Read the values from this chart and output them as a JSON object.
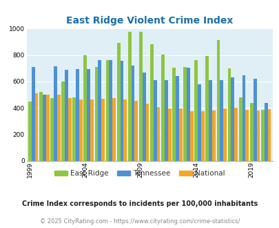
{
  "title": "East Ridge Violent Crime Index",
  "title_color": "#1a6faf",
  "years": [
    1999,
    2000,
    2001,
    2002,
    2003,
    2004,
    2005,
    2006,
    2007,
    2008,
    2009,
    2010,
    2011,
    2012,
    2013,
    2014,
    2015,
    2016,
    2017,
    2018,
    2019,
    2020
  ],
  "east_ridge": [
    450,
    520,
    475,
    600,
    480,
    800,
    710,
    760,
    890,
    975,
    975,
    880,
    805,
    705,
    710,
    760,
    790,
    910,
    700,
    480,
    435,
    385
  ],
  "tennessee": [
    710,
    500,
    715,
    690,
    695,
    695,
    760,
    760,
    755,
    720,
    665,
    610,
    610,
    640,
    705,
    580,
    610,
    610,
    630,
    645,
    620,
    435
  ],
  "national": [
    510,
    500,
    500,
    475,
    465,
    465,
    470,
    475,
    465,
    455,
    430,
    405,
    395,
    395,
    375,
    375,
    380,
    395,
    400,
    385,
    380,
    390
  ],
  "east_ridge_color": "#8dc63f",
  "tennessee_color": "#4d91d4",
  "national_color": "#f5a623",
  "bg_color": "#e0eff5",
  "ylim": [
    0,
    1000
  ],
  "yticks": [
    0,
    200,
    400,
    600,
    800,
    1000
  ],
  "xlabel_years": [
    1999,
    2004,
    2009,
    2014,
    2019
  ],
  "legend_labels": [
    "East Ridge",
    "Tennessee",
    "National"
  ],
  "subtitle": "Crime Index corresponds to incidents per 100,000 inhabitants",
  "footer": "© 2025 CityRating.com - https://www.cityrating.com/crime-statistics/",
  "subtitle_color": "#222222",
  "footer_color": "#888888"
}
